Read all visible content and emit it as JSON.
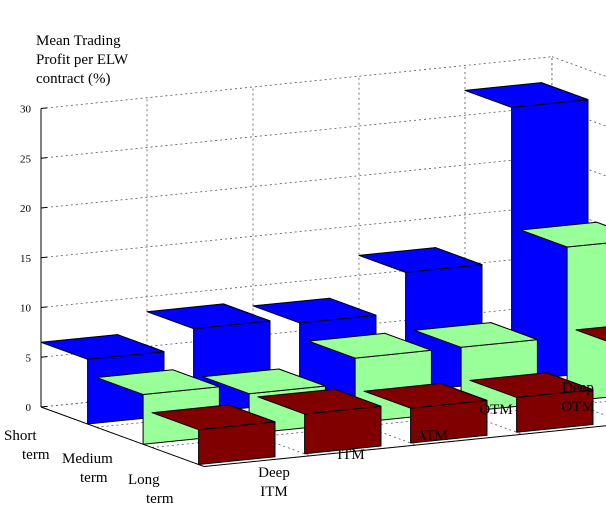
{
  "chart_data": {
    "type": "bar",
    "subtype": "3d-grouped-bar",
    "title": "",
    "ylabel": "Mean Trading Profit per ELW contract (%)",
    "ylabel_lines": [
      "Mean Trading",
      "Profit per ELW",
      "contract (%)"
    ],
    "xlabel": "",
    "ylim": [
      0,
      30
    ],
    "yticks": [
      "0",
      "5",
      "10",
      "15",
      "20",
      "25",
      "30"
    ],
    "grid": true,
    "categories": [
      "Deep ITM",
      "ITM",
      "ATM",
      "OTM",
      "Deep OTM"
    ],
    "category_label_lines": [
      [
        "Deep",
        "ITM"
      ],
      [
        "ITM"
      ],
      [
        "ATM"
      ],
      [
        "OTM"
      ],
      [
        "Deep",
        "OTM"
      ]
    ],
    "series_label_lines": [
      [
        "Short",
        "term"
      ],
      [
        "Medium",
        "term"
      ],
      [
        "Long",
        "term"
      ]
    ],
    "series": [
      {
        "name": "Short term",
        "color": "#0000ff",
        "values": [
          6.5,
          8.5,
          8.0,
          12.0,
          27.5
        ]
      },
      {
        "name": "Medium term",
        "color": "#99ff99",
        "values": [
          5.0,
          4.0,
          6.5,
          6.5,
          15.5
        ]
      },
      {
        "name": "Long term",
        "color": "#800000",
        "values": [
          3.5,
          4.0,
          3.5,
          3.5,
          7.5
        ]
      }
    ]
  }
}
